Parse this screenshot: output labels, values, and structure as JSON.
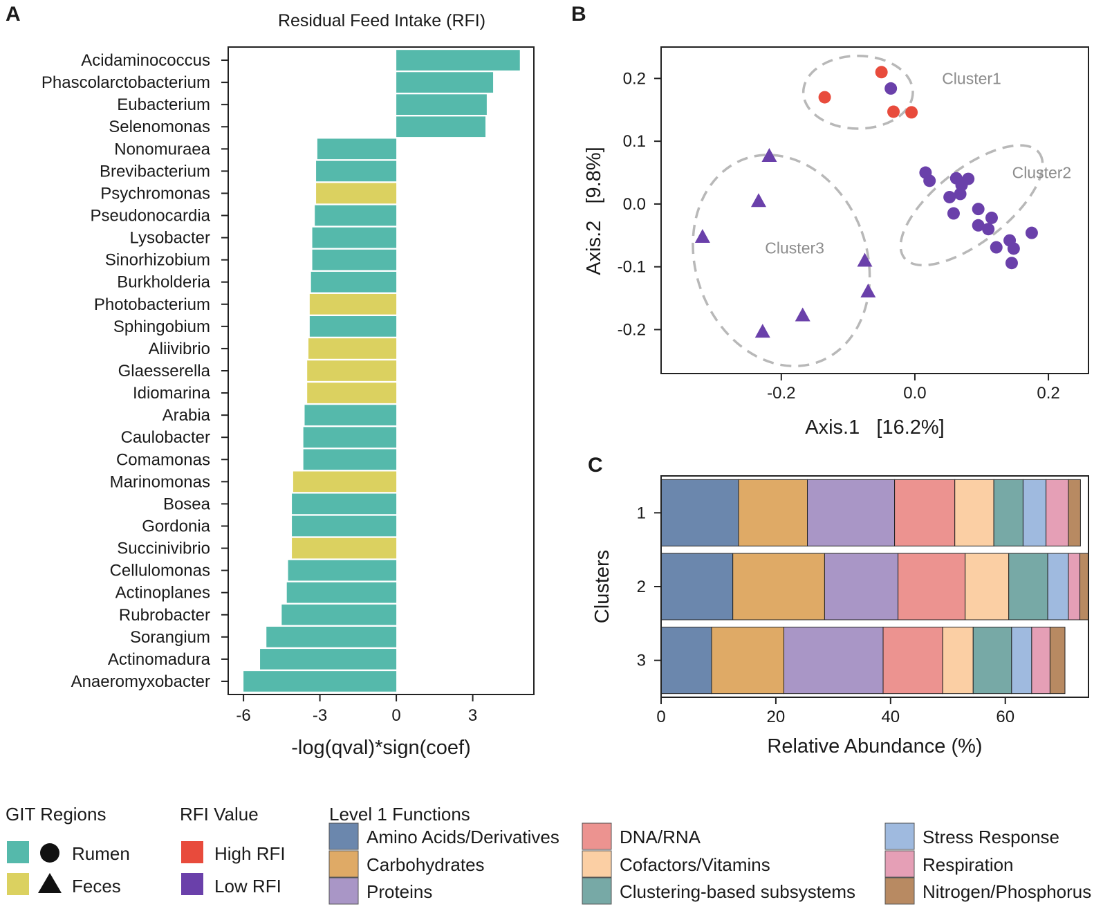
{
  "colors": {
    "rumen": "#55b9ab",
    "feces": "#dbd160",
    "high_rfi": "#e84b3c",
    "low_rfi": "#6a40aa",
    "cluster_ellipse": "#b8b8b8",
    "functions": [
      "#6b87ad",
      "#dfaa66",
      "#a996c6",
      "#ec9390",
      "#fbcfa4",
      "#77a9a6",
      "#9fbadf",
      "#e59fb6",
      "#b88a62"
    ]
  },
  "panel_letters": {
    "a": "A",
    "b": "B",
    "c": "C"
  },
  "chart_data": [
    {
      "type": "bar",
      "orientation": "horizontal",
      "title": "Residual Feed Intake (RFI)",
      "xlabel": "-log(qval)*sign(coef)",
      "xlim": [
        -6.6,
        5.4
      ],
      "xticks": [
        -6,
        -3,
        0,
        3
      ],
      "xtick_labels": [
        "-6",
        "-3",
        "0",
        "3"
      ],
      "categories": [
        "Acidaminococcus",
        "Phascolarctobacterium",
        "Eubacterium",
        "Selenomonas",
        "Nonomuraea",
        "Brevibacterium",
        "Psychromonas",
        "Pseudonocardia",
        "Lysobacter",
        "Sinorhizobium",
        "Burkholderia",
        "Photobacterium",
        "Sphingobium",
        "Aliivibrio",
        "Glaesserella",
        "Idiomarina",
        "Arabia",
        "Caulobacter",
        "Comamonas",
        "Marinomonas",
        "Bosea",
        "Gordonia",
        "Succinivibrio",
        "Cellulomonas",
        "Actinoplanes",
        "Rubrobacter",
        "Sorangium",
        "Actinomadura",
        "Anaeromyxobacter"
      ],
      "values": [
        4.85,
        3.8,
        3.55,
        3.5,
        -3.1,
        -3.15,
        -3.15,
        -3.2,
        -3.3,
        -3.3,
        -3.35,
        -3.4,
        -3.4,
        -3.45,
        -3.5,
        -3.5,
        -3.6,
        -3.65,
        -3.65,
        -4.05,
        -4.1,
        -4.1,
        -4.1,
        -4.25,
        -4.3,
        -4.5,
        -5.1,
        -5.35,
        -6.0
      ],
      "region": [
        "Rumen",
        "Rumen",
        "Rumen",
        "Rumen",
        "Rumen",
        "Rumen",
        "Feces",
        "Rumen",
        "Rumen",
        "Rumen",
        "Rumen",
        "Feces",
        "Rumen",
        "Feces",
        "Feces",
        "Feces",
        "Rumen",
        "Rumen",
        "Rumen",
        "Feces",
        "Rumen",
        "Rumen",
        "Feces",
        "Rumen",
        "Rumen",
        "Rumen",
        "Rumen",
        "Rumen",
        "Rumen"
      ]
    },
    {
      "type": "scatter",
      "xlabel": "Axis.1   [16.2%]",
      "ylabel": "Axis.2   [9.8%]",
      "xlim": [
        -0.38,
        0.26
      ],
      "ylim": [
        -0.27,
        0.25
      ],
      "xticks": [
        -0.2,
        0.0,
        0.2
      ],
      "xtick_labels": [
        "-0.2",
        "0.0",
        "0.2"
      ],
      "yticks": [
        -0.2,
        -0.1,
        0.0,
        0.1,
        0.2
      ],
      "ytick_labels": [
        "-0.2",
        "-0.1",
        "0.0",
        "0.1",
        "0.2"
      ],
      "clusters": [
        {
          "name": "Cluster1",
          "center": [
            -0.085,
            0.178
          ],
          "radii": [
            0.082,
            0.058
          ],
          "angle": 0
        },
        {
          "name": "Cluster2",
          "center": [
            0.085,
            -0.002
          ],
          "radii": [
            0.128,
            0.058
          ],
          "angle": -38
        },
        {
          "name": "Cluster3",
          "center": [
            -0.2,
            -0.09
          ],
          "radii": [
            0.128,
            0.172
          ],
          "angle": -20
        }
      ],
      "cluster_label_positions": [
        [
          0.085,
          0.2
        ],
        [
          0.19,
          0.05
        ],
        [
          -0.18,
          -0.07
        ]
      ],
      "points": [
        {
          "x": -0.135,
          "y": 0.17,
          "rfi": "High",
          "region": "Rumen"
        },
        {
          "x": -0.05,
          "y": 0.21,
          "rfi": "High",
          "region": "Rumen"
        },
        {
          "x": -0.032,
          "y": 0.147,
          "rfi": "High",
          "region": "Rumen"
        },
        {
          "x": -0.005,
          "y": 0.146,
          "rfi": "High",
          "region": "Rumen"
        },
        {
          "x": -0.036,
          "y": 0.184,
          "rfi": "Low",
          "region": "Rumen"
        },
        {
          "x": 0.016,
          "y": 0.05,
          "rfi": "Low",
          "region": "Rumen"
        },
        {
          "x": 0.022,
          "y": 0.037,
          "rfi": "Low",
          "region": "Rumen"
        },
        {
          "x": 0.062,
          "y": 0.041,
          "rfi": "Low",
          "region": "Rumen"
        },
        {
          "x": 0.07,
          "y": 0.03,
          "rfi": "Low",
          "region": "Rumen"
        },
        {
          "x": 0.08,
          "y": 0.04,
          "rfi": "Low",
          "region": "Rumen"
        },
        {
          "x": 0.052,
          "y": 0.011,
          "rfi": "Low",
          "region": "Rumen"
        },
        {
          "x": 0.068,
          "y": 0.016,
          "rfi": "Low",
          "region": "Rumen"
        },
        {
          "x": 0.058,
          "y": -0.015,
          "rfi": "Low",
          "region": "Rumen"
        },
        {
          "x": 0.095,
          "y": -0.008,
          "rfi": "Low",
          "region": "Rumen"
        },
        {
          "x": 0.115,
          "y": -0.022,
          "rfi": "Low",
          "region": "Rumen"
        },
        {
          "x": 0.095,
          "y": -0.034,
          "rfi": "Low",
          "region": "Rumen"
        },
        {
          "x": 0.11,
          "y": -0.04,
          "rfi": "Low",
          "region": "Rumen"
        },
        {
          "x": 0.175,
          "y": -0.046,
          "rfi": "Low",
          "region": "Rumen"
        },
        {
          "x": 0.142,
          "y": -0.058,
          "rfi": "Low",
          "region": "Rumen"
        },
        {
          "x": 0.122,
          "y": -0.069,
          "rfi": "Low",
          "region": "Rumen"
        },
        {
          "x": 0.148,
          "y": -0.071,
          "rfi": "Low",
          "region": "Rumen"
        },
        {
          "x": 0.145,
          "y": -0.094,
          "rfi": "Low",
          "region": "Rumen"
        },
        {
          "x": -0.218,
          "y": 0.076,
          "rfi": "Low",
          "region": "Feces"
        },
        {
          "x": -0.234,
          "y": 0.004,
          "rfi": "Low",
          "region": "Feces"
        },
        {
          "x": -0.318,
          "y": -0.053,
          "rfi": "Low",
          "region": "Feces"
        },
        {
          "x": -0.075,
          "y": -0.091,
          "rfi": "Low",
          "region": "Feces"
        },
        {
          "x": -0.07,
          "y": -0.14,
          "rfi": "Low",
          "region": "Feces"
        },
        {
          "x": -0.168,
          "y": -0.178,
          "rfi": "Low",
          "region": "Feces"
        },
        {
          "x": -0.228,
          "y": -0.204,
          "rfi": "Low",
          "region": "Feces"
        }
      ]
    },
    {
      "type": "bar",
      "orientation": "horizontal",
      "stacked": true,
      "xlabel": "Relative Abundance (%)",
      "ylabel": "Clusters",
      "xlim": [
        0,
        74.5
      ],
      "xticks": [
        0,
        20,
        40,
        60
      ],
      "xtick_labels": [
        "0",
        "20",
        "40",
        "60"
      ],
      "categories": [
        "1",
        "2",
        "3"
      ],
      "series": [
        {
          "name": "Amino Acids/Derivatives",
          "values": [
            13.5,
            12.5,
            8.8
          ]
        },
        {
          "name": "Carbohydrates",
          "values": [
            12.0,
            16.0,
            12.6
          ]
        },
        {
          "name": "Proteins",
          "values": [
            15.2,
            12.8,
            17.3
          ]
        },
        {
          "name": "DNA/RNA",
          "values": [
            10.5,
            11.7,
            10.4
          ]
        },
        {
          "name": "Cofactors/Vitamins",
          "values": [
            6.8,
            7.6,
            5.3
          ]
        },
        {
          "name": "Clustering-based subsystems",
          "values": [
            5.1,
            6.8,
            6.7
          ]
        },
        {
          "name": "Stress Response",
          "values": [
            4.0,
            3.6,
            3.5
          ]
        },
        {
          "name": "Respiration",
          "values": [
            3.9,
            2.0,
            3.2
          ]
        },
        {
          "name": "Nitrogen/Phosphorus",
          "values": [
            2.1,
            1.5,
            2.6
          ]
        }
      ]
    }
  ],
  "legend": {
    "git_title": "GIT Regions",
    "git_items": [
      "Rumen",
      "Feces"
    ],
    "rfi_title": "RFI Value",
    "rfi_items": [
      "High RFI",
      "Low RFI"
    ],
    "func_title": "Level 1 Functions"
  }
}
